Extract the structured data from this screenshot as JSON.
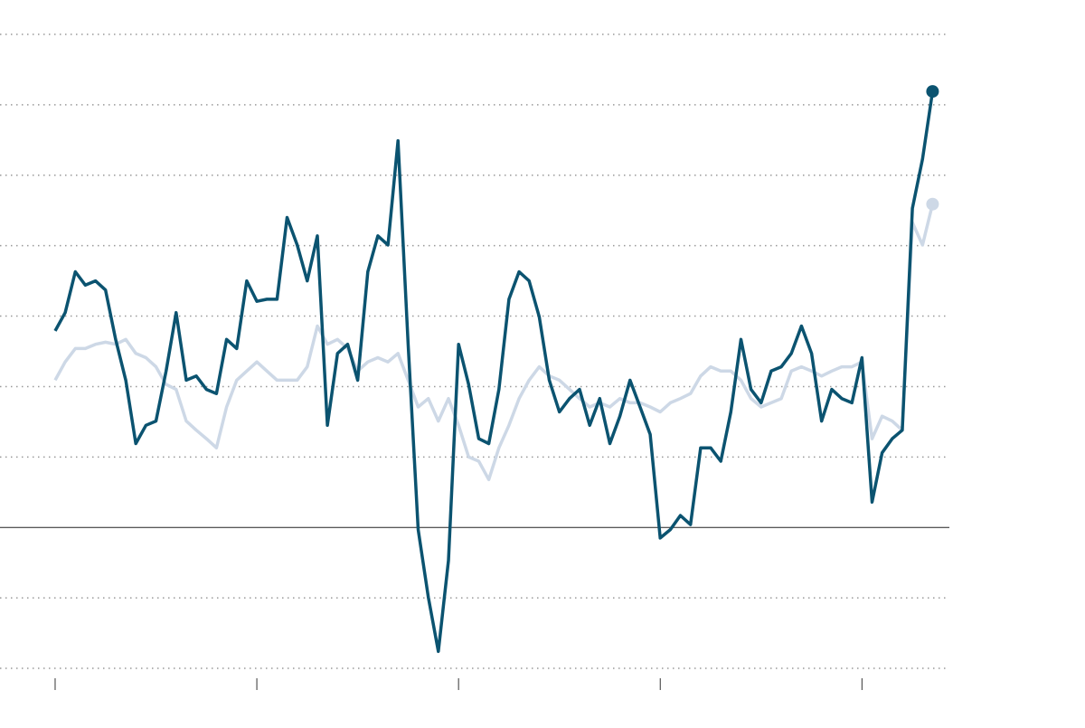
{
  "chart_data": {
    "type": "line",
    "x": [
      0,
      3,
      6,
      9,
      12,
      15,
      18,
      21,
      24,
      27,
      30,
      33,
      36,
      39,
      42,
      45,
      48,
      51,
      54,
      57,
      60,
      63,
      66,
      69,
      72,
      75,
      78,
      81,
      84,
      87,
      90,
      93,
      96,
      99,
      102,
      105,
      108,
      111,
      114,
      117,
      120,
      123,
      126,
      129,
      132,
      135,
      138,
      141,
      144,
      147,
      150,
      153,
      156,
      159,
      162,
      165,
      168,
      171,
      174,
      177,
      180,
      183,
      186,
      189,
      192,
      195,
      198,
      201,
      204,
      207,
      210,
      213,
      216,
      219,
      222,
      225,
      228,
      231,
      234,
      237,
      240,
      243,
      246,
      249,
      252,
      255,
      258,
      261
    ],
    "series": [
      {
        "color": "#cdd8e6",
        "values": [
          2.09,
          2.35,
          2.54,
          2.54,
          2.6,
          2.63,
          2.6,
          2.67,
          2.47,
          2.41,
          2.28,
          2.03,
          1.96,
          1.51,
          1.38,
          1.26,
          1.13,
          1.71,
          2.09,
          2.22,
          2.35,
          2.22,
          2.09,
          2.09,
          2.09,
          2.28,
          2.86,
          2.6,
          2.67,
          2.54,
          2.22,
          2.35,
          2.41,
          2.35,
          2.47,
          2.09,
          1.71,
          1.83,
          1.51,
          1.83,
          1.45,
          1.0,
          0.94,
          0.68,
          1.13,
          1.45,
          1.83,
          2.09,
          2.28,
          2.15,
          2.09,
          1.96,
          1.83,
          1.71,
          1.77,
          1.71,
          1.83,
          1.77,
          1.77,
          1.71,
          1.64,
          1.77,
          1.83,
          1.9,
          2.15,
          2.28,
          2.22,
          2.22,
          2.09,
          1.83,
          1.71,
          1.77,
          1.83,
          2.22,
          2.28,
          2.22,
          2.15,
          2.22,
          2.28,
          2.28,
          2.35,
          1.26,
          1.58,
          1.51,
          1.38,
          4.33,
          4.01,
          4.59
        ]
      },
      {
        "color": "#0b5370",
        "values": [
          2.79,
          3.05,
          3.63,
          3.44,
          3.5,
          3.37,
          2.67,
          2.09,
          1.19,
          1.45,
          1.51,
          2.22,
          3.05,
          2.09,
          2.15,
          1.96,
          1.9,
          2.67,
          2.54,
          3.5,
          3.21,
          3.24,
          3.24,
          4.4,
          4.01,
          3.5,
          4.14,
          1.45,
          2.47,
          2.6,
          2.09,
          3.63,
          4.14,
          4.01,
          5.49,
          2.6,
          -0.03,
          -0.99,
          -1.76,
          -0.47,
          2.6,
          2.03,
          1.26,
          1.19,
          1.96,
          3.24,
          3.63,
          3.5,
          2.99,
          2.09,
          1.64,
          1.83,
          1.96,
          1.45,
          1.83,
          1.19,
          1.58,
          2.09,
          1.71,
          1.32,
          -0.15,
          -0.03,
          0.17,
          0.04,
          1.13,
          1.13,
          0.94,
          1.64,
          2.67,
          1.96,
          1.77,
          2.22,
          2.28,
          2.47,
          2.86,
          2.47,
          1.51,
          1.96,
          1.83,
          1.77,
          2.41,
          0.36,
          1.06,
          1.26,
          1.38,
          4.53,
          5.23,
          6.19
        ]
      }
    ],
    "xlim": [
      -16.4,
      266
    ],
    "xticks": [
      0,
      60,
      120,
      180,
      240
    ],
    "ylim": [
      -2,
      7
    ],
    "yticks": [
      -2,
      -1,
      0,
      1,
      2,
      3,
      4,
      5,
      6,
      7
    ],
    "grid": true
  }
}
